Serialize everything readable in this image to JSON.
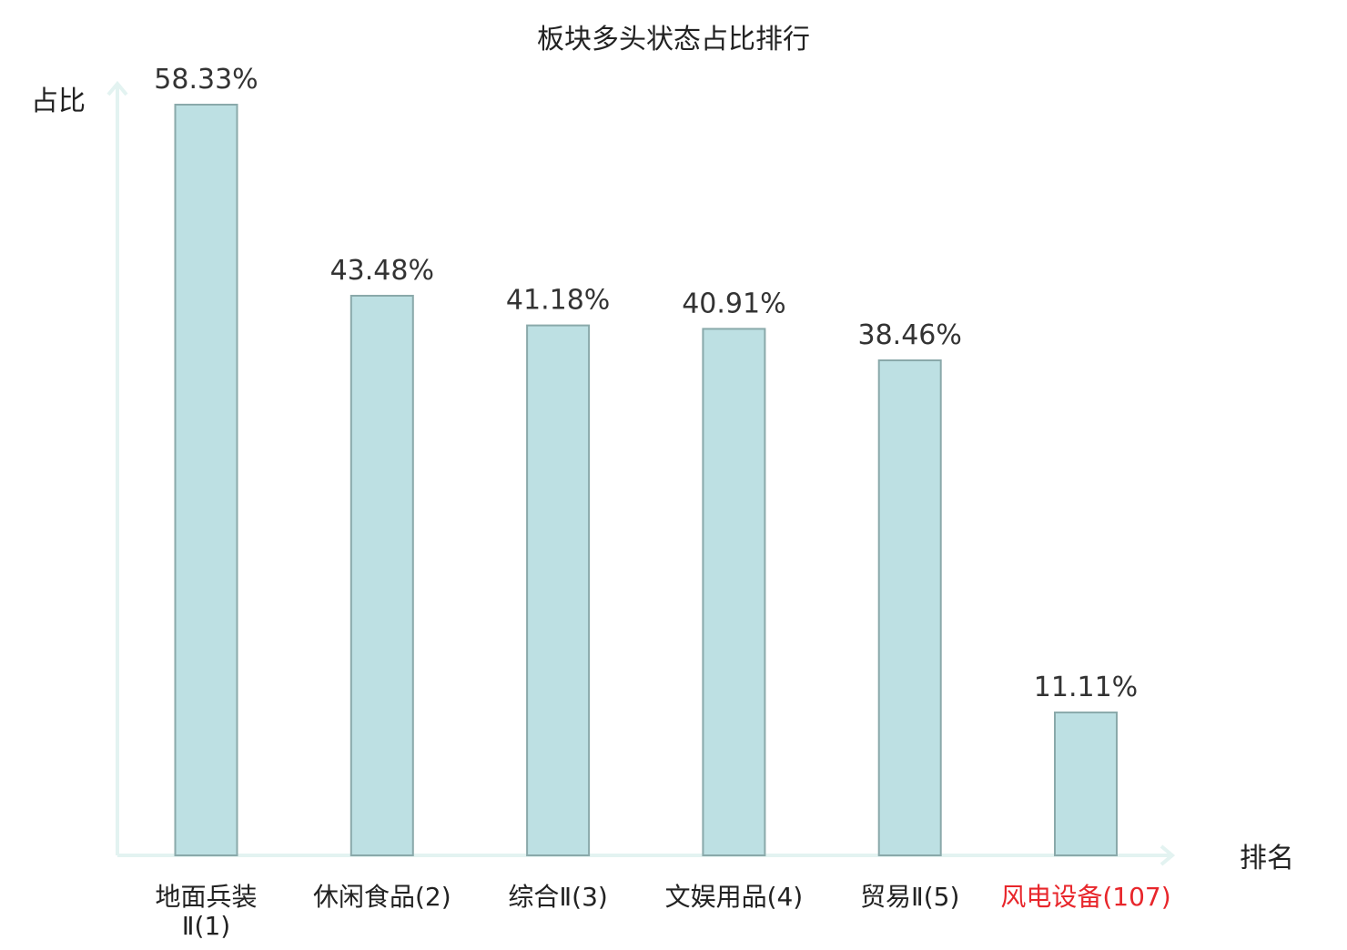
{
  "chart_data": {
    "type": "bar",
    "title": "板块多头状态占比排行",
    "xlabel": "排名",
    "ylabel": "占比",
    "ylim": [
      0,
      60
    ],
    "categories": [
      [
        "地面兵装",
        "Ⅱ(1)"
      ],
      [
        "休闲食品(2)"
      ],
      [
        "综合Ⅱ(3)"
      ],
      [
        "文娱用品(4)"
      ],
      [
        "贸易Ⅱ(5)"
      ],
      [
        "风电设备(107)"
      ]
    ],
    "values": [
      58.33,
      43.48,
      41.18,
      40.91,
      38.46,
      11.11
    ],
    "value_labels": [
      "58.33%",
      "43.48%",
      "41.18%",
      "40.91%",
      "38.46%",
      "11.11%"
    ],
    "highlight_index": 5,
    "grid": false,
    "legend": "none"
  },
  "colors": {
    "bar_fill": "#bde0e3",
    "bar_stroke": "#8aa9aa",
    "axis": "#e3f3f1",
    "label_text": "#333333",
    "highlight_text": "#e8262b",
    "title_text": "#222222"
  }
}
